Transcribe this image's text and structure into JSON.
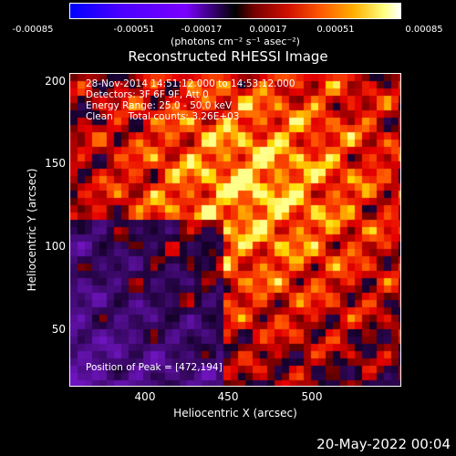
{
  "colorbar": {
    "ticks": [
      "-0.00085",
      "-0.00051",
      "-0.00017",
      "0.00017",
      "0.00051",
      "0.00085"
    ],
    "units": "(photons cm⁻² s⁻¹ asec⁻²)",
    "range": [
      -0.00085,
      0.00085
    ]
  },
  "title": "Reconstructed RHESSI Image",
  "info": {
    "line1": "28-Nov-2014 14:51:12.000 to 14:53:12.000",
    "line2": "Detectors: 3F 6F 9F, Att 0",
    "line3": "Energy Range: 25.0 - 50.0 keV",
    "line4": "Clean     Total counts: 3.26E+03",
    "peak": "Position of Peak = [472,194]"
  },
  "axes": {
    "xlabel": "Heliocentric X (arcsec)",
    "ylabel": "Heliocentric Y (arcsec)",
    "xticks": [
      "400",
      "450",
      "500"
    ],
    "yticks": [
      "200",
      "150",
      "100",
      "50"
    ],
    "xlim": [
      356,
      546
    ],
    "ylim": [
      14,
      206
    ]
  },
  "footer": {
    "date": "20-May-2022 00:04"
  }
}
